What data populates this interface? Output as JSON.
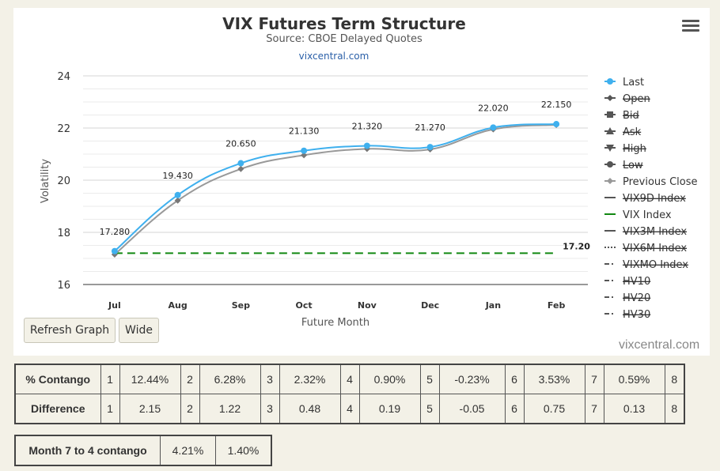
{
  "title": "VIX Futures Term Structure",
  "subtitle": "Source: CBOE Delayed Quotes",
  "credit_link": "vixcentral.com",
  "watermark": "vixcentral.com",
  "menu_icon": "hamburger-menu-icon",
  "buttons": {
    "refresh": "Refresh Graph",
    "wide": "Wide"
  },
  "chart_data": {
    "type": "line",
    "title": "VIX Futures Term Structure",
    "subtitle": "Source: CBOE Delayed Quotes",
    "xlabel": "Future Month",
    "ylabel": "Volatility",
    "categories": [
      "Jul",
      "Aug",
      "Sep",
      "Oct",
      "Nov",
      "Dec",
      "Jan",
      "Feb"
    ],
    "ylim": [
      16,
      24
    ],
    "yticks": [
      16,
      18,
      20,
      22,
      24
    ],
    "grid": true,
    "legend_position": "right",
    "series": [
      {
        "name": "Last",
        "color": "#3fb0ee",
        "visible": true,
        "marker": "circle",
        "values": [
          17.28,
          19.43,
          20.65,
          21.13,
          21.32,
          21.27,
          22.02,
          22.15
        ],
        "labels": [
          "17.280",
          "19.430",
          "20.650",
          "21.130",
          "21.320",
          "21.270",
          "22.020",
          "22.150"
        ]
      },
      {
        "name": "Previous Close",
        "color": "#999999",
        "visible": true,
        "marker": "diamond",
        "values": [
          17.15,
          19.22,
          20.43,
          20.96,
          21.2,
          21.18,
          21.95,
          22.12
        ]
      },
      {
        "name": "VIX Index",
        "color": "#118811",
        "visible": true,
        "dashed": true,
        "value": 17.2,
        "label": "17.20"
      }
    ],
    "legend": [
      {
        "name": "Last",
        "visible": true,
        "symbol": "circle",
        "color": "#3fb0ee"
      },
      {
        "name": "Open",
        "visible": false,
        "symbol": "diamond",
        "color": "#555555"
      },
      {
        "name": "Bid",
        "visible": false,
        "symbol": "square",
        "color": "#555555"
      },
      {
        "name": "Ask",
        "visible": false,
        "symbol": "triangle-up",
        "color": "#555555"
      },
      {
        "name": "High",
        "visible": false,
        "symbol": "triangle-down",
        "color": "#555555"
      },
      {
        "name": "Low",
        "visible": false,
        "symbol": "circle",
        "color": "#555555"
      },
      {
        "name": "Previous Close",
        "visible": true,
        "symbol": "diamond",
        "color": "#999999"
      },
      {
        "name": "VIX9D Index",
        "visible": false,
        "symbol": "solid",
        "color": "#555555"
      },
      {
        "name": "VIX Index",
        "visible": true,
        "symbol": "solid",
        "color": "#118811"
      },
      {
        "name": "VIX3M Index",
        "visible": false,
        "symbol": "solid",
        "color": "#555555"
      },
      {
        "name": "VIX6M Index",
        "visible": false,
        "symbol": "dotted",
        "color": "#555555"
      },
      {
        "name": "VIXMO Index",
        "visible": false,
        "symbol": "dashdot",
        "color": "#555555"
      },
      {
        "name": "HV10",
        "visible": false,
        "symbol": "dashdot",
        "color": "#555555"
      },
      {
        "name": "HV20",
        "visible": false,
        "symbol": "dashdot",
        "color": "#555555"
      },
      {
        "name": "HV30",
        "visible": false,
        "symbol": "dashdot",
        "color": "#555555"
      }
    ]
  },
  "contango_table": {
    "rows": [
      {
        "label": "% Contango",
        "cells": [
          "1",
          "12.44%",
          "2",
          "6.28%",
          "3",
          "2.32%",
          "4",
          "0.90%",
          "5",
          "-0.23%",
          "6",
          "3.53%",
          "7",
          "0.59%",
          "8"
        ]
      },
      {
        "label": "Difference",
        "cells": [
          "1",
          "2.15",
          "2",
          "1.22",
          "3",
          "0.48",
          "4",
          "0.19",
          "5",
          "-0.05",
          "6",
          "0.75",
          "7",
          "0.13",
          "8"
        ]
      }
    ]
  },
  "month_table": {
    "label": "Month 7 to 4 contango",
    "values": [
      "4.21%",
      "1.40%"
    ]
  }
}
